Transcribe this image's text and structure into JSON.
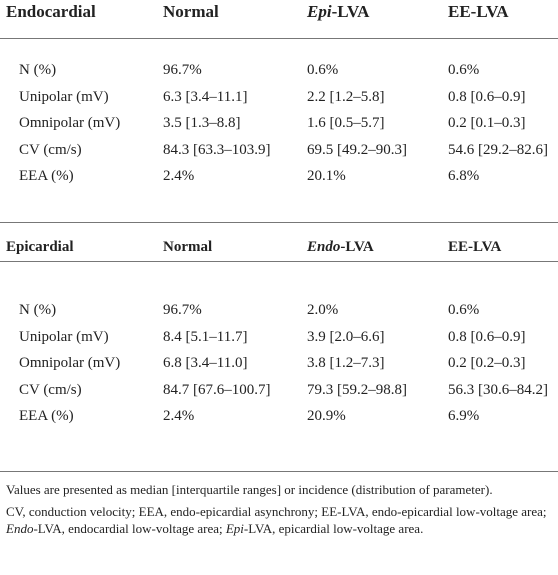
{
  "sections": [
    {
      "header": {
        "region": "Endocardial",
        "col_normal": "Normal",
        "col_lva_prefix": "Epi",
        "col_lva_suffix": "-LVA",
        "col_ee": "EE-LVA"
      },
      "rows": [
        {
          "label": "N (%)",
          "normal": "96.7%",
          "lva": "0.6%",
          "ee": "0.6%"
        },
        {
          "label": "Unipolar (mV)",
          "normal": "6.3 [3.4–11.1]",
          "lva": "2.2 [1.2–5.8]",
          "ee": "0.8 [0.6–0.9]"
        },
        {
          "label": "Omnipolar (mV)",
          "normal": "3.5 [1.3–8.8]",
          "lva": "1.6 [0.5–5.7]",
          "ee": "0.2 [0.1–0.3]"
        },
        {
          "label": "CV (cm/s)",
          "normal": "84.3 [63.3–103.9]",
          "lva": "69.5 [49.2–90.3]",
          "ee": "54.6 [29.2–82.6]"
        },
        {
          "label": "EEA (%)",
          "normal": "2.4%",
          "lva": "20.1%",
          "ee": "6.8%"
        }
      ]
    },
    {
      "header": {
        "region": "Epicardial",
        "col_normal": "Normal",
        "col_lva_prefix": "Endo",
        "col_lva_suffix": "-LVA",
        "col_ee": "EE-LVA"
      },
      "rows": [
        {
          "label": "N (%)",
          "normal": "96.7%",
          "lva": "2.0%",
          "ee": "0.6%"
        },
        {
          "label": "Unipolar (mV)",
          "normal": "8.4 [5.1–11.7]",
          "lva": "3.9 [2.0–6.6]",
          "ee": "0.8 [0.6–0.9]"
        },
        {
          "label": "Omnipolar (mV)",
          "normal": "6.8 [3.4–11.0]",
          "lva": "3.8 [1.2–7.3]",
          "ee": "0.2 [0.2–0.3]"
        },
        {
          "label": "CV (cm/s)",
          "normal": "84.7 [67.6–100.7]",
          "lva": "79.3 [59.2–98.8]",
          "ee": "56.3 [30.6–84.2]"
        },
        {
          "label": "EEA (%)",
          "normal": "2.4%",
          "lva": "20.9%",
          "ee": "6.9%"
        }
      ]
    }
  ],
  "footer": {
    "note1": "Values are presented as median [interquartile ranges] or incidence (distribution of parameter).",
    "note2_a": "CV, conduction velocity; EEA, endo-epicardial asynchrony; EE-LVA, endo-epicardial low-voltage area; ",
    "note2_endo": "Endo",
    "note2_b": "-LVA, endocardial low-voltage area; ",
    "note2_epi": "Epi",
    "note2_c": "-LVA, epicardial low-voltage area."
  }
}
